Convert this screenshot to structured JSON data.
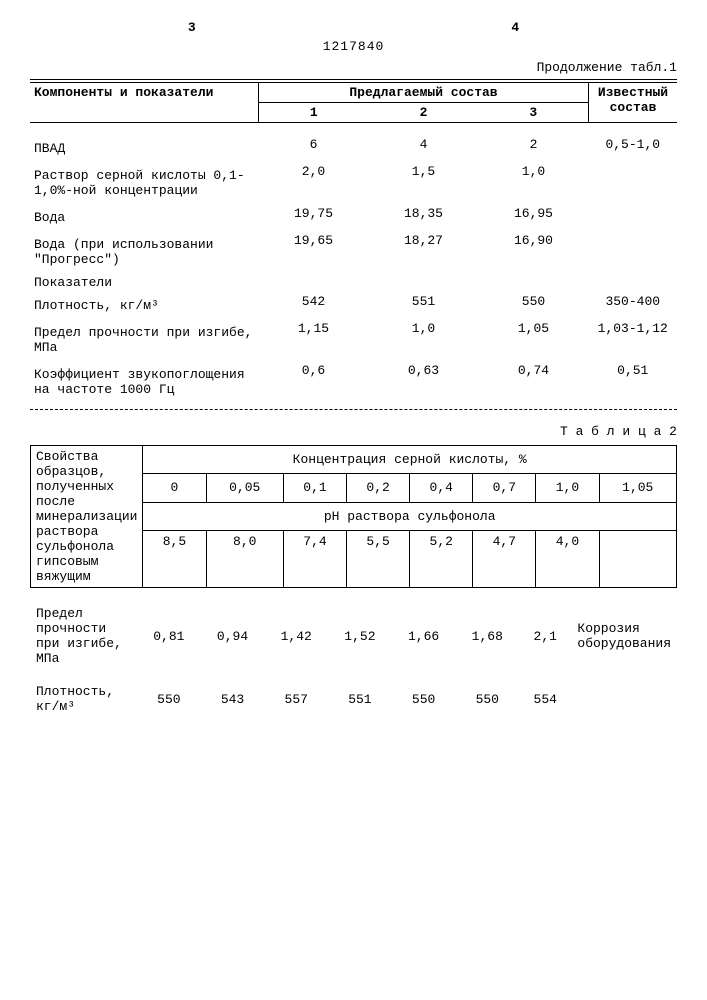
{
  "header": {
    "page_left": "3",
    "page_right": "4",
    "doc_number": "1217840",
    "continuation": "Продолжение табл.1"
  },
  "table1": {
    "head": {
      "components": "Компоненты и показатели",
      "proposed": "Предлагаемый состав",
      "known": "Известный состав",
      "c1": "1",
      "c2": "2",
      "c3": "3"
    },
    "rows": [
      {
        "label": "ПВАД",
        "v1": "6",
        "v2": "4",
        "v3": "2",
        "v4": "0,5-1,0"
      },
      {
        "label": "Раствор серной кислоты 0,1-1,0%-ной концентрации",
        "v1": "2,0",
        "v2": "1,5",
        "v3": "1,0",
        "v4": ""
      },
      {
        "label": "Вода",
        "v1": "19,75",
        "v2": "18,35",
        "v3": "16,95",
        "v4": ""
      },
      {
        "label": "Вода (при использовании \"Прогресс\")",
        "v1": "19,65",
        "v2": "18,27",
        "v3": "16,90",
        "v4": ""
      }
    ],
    "indicators_label": "Показатели",
    "indicators": [
      {
        "label": "Плотность, кг/м³",
        "v1": "542",
        "v2": "551",
        "v3": "550",
        "v4": "350-400"
      },
      {
        "label": "Предел прочности при изгибе, МПа",
        "v1": "1,15",
        "v2": "1,0",
        "v3": "1,05",
        "v4": "1,03-1,12"
      },
      {
        "label": "Коэффициент звукопоглощения на частоте 1000 Гц",
        "v1": "0,6",
        "v2": "0,63",
        "v3": "0,74",
        "v4": "0,51"
      }
    ]
  },
  "table2": {
    "caption": "Т а б л и ц а  2",
    "side_label": "Свойства образцов, полученных после минерализации раствора сульфонола гипсовым вяжущим",
    "conc_header": "Концентрация серной кислоты, %",
    "ph_header": "pH раствора сульфонола",
    "conc": [
      "0",
      "0,05",
      "0,1",
      "0,2",
      "0,4",
      "0,7",
      "1,0",
      "1,05"
    ],
    "ph": [
      "8,5",
      "8,0",
      "7,4",
      "5,5",
      "5,2",
      "4,7",
      "4,0",
      ""
    ],
    "bottom": [
      {
        "label": "Предел прочности при изгибе, МПа",
        "v": [
          "0,81",
          "0,94",
          "1,42",
          "1,52",
          "1,66",
          "1,68",
          "2,1"
        ],
        "note": "Коррозия оборудования"
      },
      {
        "label": "Плотность, кг/м³",
        "v": [
          "550",
          "543",
          "557",
          "551",
          "550",
          "550",
          "554"
        ],
        "note": ""
      }
    ]
  }
}
